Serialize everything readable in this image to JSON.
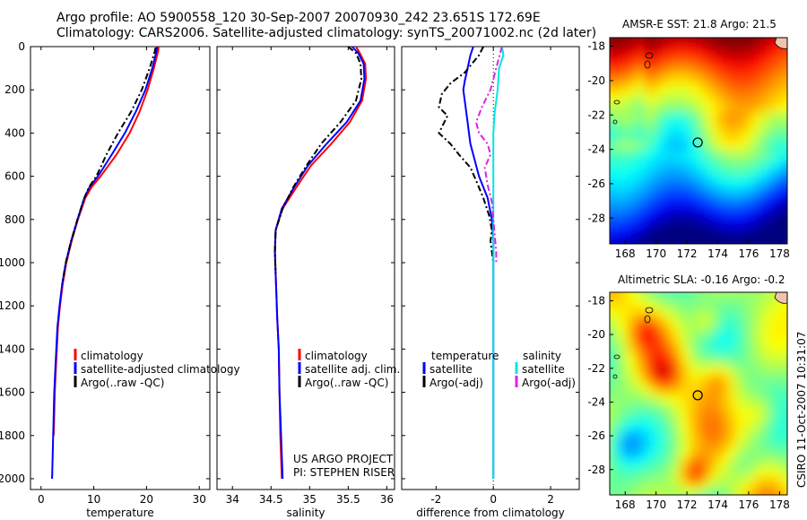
{
  "header": {
    "line1": "Argo profile: AO 5900558_120 30-Sep-2007 20070930_242 23.651S 172.69E",
    "line2": "Climatology: CARS2006. Satellite-adjusted climatology: synTS_20071002.nc (2d later)"
  },
  "colors": {
    "climatology": "#ff0000",
    "satellite": "#0000ff",
    "argo": "#000000",
    "sal_satellite": "#00e5e5",
    "sal_argo": "#e020e0"
  },
  "credits": {
    "project": "US ARGO PROJECT",
    "pi": "PI: STEPHEN RISER",
    "csiro": "CSIRO 11-Oct-2007 10:31:07"
  },
  "chart_data": [
    {
      "type": "line",
      "title": "",
      "xlabel": "temperature",
      "ylabel": "",
      "xlim": [
        -2,
        32
      ],
      "ylim": [
        2050,
        0
      ],
      "xticks": [
        "0",
        "10",
        "20",
        "30"
      ],
      "yticks": [
        "0",
        "200",
        "400",
        "600",
        "800",
        "1000",
        "1200",
        "1400",
        "1600",
        "1800",
        "2000"
      ],
      "legend": [
        "climatology",
        "satellite-adjusted climatology",
        "Argo(..raw -QC)"
      ],
      "series": [
        {
          "name": "climatology",
          "color": "red",
          "style": "solid",
          "points": [
            [
              22.3,
              0
            ],
            [
              22.2,
              20
            ],
            [
              21.4,
              100
            ],
            [
              20.2,
              200
            ],
            [
              18.7,
              300
            ],
            [
              16.8,
              400
            ],
            [
              14.3,
              500
            ],
            [
              11.3,
              600
            ],
            [
              9.6,
              650
            ],
            [
              8.4,
              700
            ],
            [
              7.0,
              800
            ],
            [
              5.8,
              900
            ],
            [
              4.8,
              1000
            ],
            [
              4.1,
              1100
            ],
            [
              3.6,
              1200
            ],
            [
              3.2,
              1300
            ],
            [
              3.0,
              1400
            ],
            [
              2.8,
              1500
            ],
            [
              2.6,
              1600
            ],
            [
              2.5,
              1700
            ],
            [
              2.4,
              1800
            ]
          ]
        },
        {
          "name": "satellite",
          "color": "blue",
          "style": "solid",
          "points": [
            [
              22.0,
              0
            ],
            [
              21.9,
              20
            ],
            [
              21.1,
              100
            ],
            [
              19.8,
              200
            ],
            [
              18.0,
              300
            ],
            [
              15.9,
              400
            ],
            [
              13.4,
              500
            ],
            [
              10.8,
              600
            ],
            [
              9.2,
              650
            ],
            [
              8.2,
              700
            ],
            [
              6.9,
              800
            ],
            [
              5.7,
              900
            ],
            [
              4.7,
              1000
            ],
            [
              4.0,
              1100
            ],
            [
              3.5,
              1200
            ],
            [
              3.1,
              1300
            ],
            [
              2.9,
              1400
            ],
            [
              2.7,
              1500
            ],
            [
              2.5,
              1600
            ],
            [
              2.4,
              1700
            ],
            [
              2.3,
              1800
            ],
            [
              2.2,
              1900
            ],
            [
              2.1,
              2000
            ]
          ]
        },
        {
          "name": "argo",
          "color": "black",
          "style": "dashed",
          "points": [
            [
              21.7,
              5
            ],
            [
              21.6,
              20
            ],
            [
              20.6,
              100
            ],
            [
              19.1,
              200
            ],
            [
              17.1,
              300
            ],
            [
              14.6,
              400
            ],
            [
              12.4,
              500
            ],
            [
              10.5,
              600
            ],
            [
              9.1,
              650
            ],
            [
              8.2,
              700
            ],
            [
              6.9,
              800
            ],
            [
              5.7,
              900
            ],
            [
              4.7,
              1000
            ],
            [
              4.0,
              1100
            ]
          ]
        }
      ]
    },
    {
      "type": "line",
      "xlabel": "salinity",
      "xlim": [
        33.8,
        36.1
      ],
      "ylim": [
        2050,
        0
      ],
      "xticks": [
        "34",
        "34.5",
        "35",
        "35.5",
        "36"
      ],
      "legend": [
        "climatology",
        "satellite adj. clim.",
        "Argo(..raw -QC)"
      ],
      "series": [
        {
          "name": "climatology",
          "color": "red",
          "style": "solid",
          "points": [
            [
              35.6,
              0
            ],
            [
              35.65,
              30
            ],
            [
              35.72,
              80
            ],
            [
              35.73,
              150
            ],
            [
              35.68,
              250
            ],
            [
              35.52,
              350
            ],
            [
              35.28,
              450
            ],
            [
              35.02,
              550
            ],
            [
              34.83,
              650
            ],
            [
              34.65,
              750
            ],
            [
              34.56,
              850
            ],
            [
              34.55,
              950
            ],
            [
              34.56,
              1050
            ],
            [
              34.57,
              1150
            ],
            [
              34.58,
              1250
            ],
            [
              34.6,
              1400
            ],
            [
              34.61,
              1600
            ],
            [
              34.62,
              1800
            ],
            [
              34.64,
              2000
            ]
          ]
        },
        {
          "name": "satellite",
          "color": "blue",
          "style": "solid",
          "points": [
            [
              35.55,
              0
            ],
            [
              35.63,
              30
            ],
            [
              35.7,
              80
            ],
            [
              35.71,
              150
            ],
            [
              35.66,
              250
            ],
            [
              35.48,
              350
            ],
            [
              35.22,
              450
            ],
            [
              34.98,
              550
            ],
            [
              34.8,
              650
            ],
            [
              34.64,
              750
            ],
            [
              34.56,
              850
            ],
            [
              34.55,
              950
            ],
            [
              34.56,
              1050
            ],
            [
              34.57,
              1150
            ],
            [
              34.58,
              1250
            ],
            [
              34.6,
              1400
            ],
            [
              34.61,
              1600
            ],
            [
              34.63,
              1800
            ],
            [
              34.65,
              2000
            ]
          ]
        },
        {
          "name": "argo",
          "color": "black",
          "style": "dashed",
          "points": [
            [
              35.5,
              0
            ],
            [
              35.6,
              30
            ],
            [
              35.66,
              80
            ],
            [
              35.67,
              150
            ],
            [
              35.6,
              250
            ],
            [
              35.4,
              350
            ],
            [
              35.15,
              450
            ],
            [
              34.96,
              550
            ],
            [
              34.79,
              650
            ],
            [
              34.65,
              750
            ],
            [
              34.56,
              850
            ],
            [
              34.55,
              950
            ],
            [
              34.56,
              1050
            ]
          ]
        }
      ]
    },
    {
      "type": "line",
      "xlabel": "difference from climatology",
      "xlim": [
        -3.2,
        3.0
      ],
      "ylim": [
        2050,
        0
      ],
      "xticks": [
        "-2",
        "0",
        "2"
      ],
      "zero_line": 0,
      "legend": [
        {
          "heading": "temperature",
          "entries": [
            "satellite",
            "Argo(-adj)"
          ]
        },
        {
          "heading": "salinity",
          "entries": [
            "satellite",
            "Argo(-adj)"
          ]
        }
      ],
      "series": [
        {
          "name": "temperature satellite",
          "color": "blue",
          "style": "solid",
          "points": [
            [
              -0.7,
              0
            ],
            [
              -0.8,
              40
            ],
            [
              -0.9,
              100
            ],
            [
              -1.0,
              160
            ],
            [
              -1.05,
              200
            ],
            [
              -1.0,
              250
            ],
            [
              -0.95,
              300
            ],
            [
              -0.9,
              350
            ],
            [
              -0.85,
              400
            ],
            [
              -0.8,
              450
            ],
            [
              -0.7,
              500
            ],
            [
              -0.5,
              600
            ],
            [
              -0.2,
              700
            ],
            [
              -0.05,
              800
            ],
            [
              0,
              900
            ],
            [
              0,
              1200
            ],
            [
              0,
              1600
            ],
            [
              0,
              2000
            ]
          ]
        },
        {
          "name": "temperature argo",
          "color": "black",
          "style": "dashed",
          "points": [
            [
              -0.35,
              0
            ],
            [
              -0.5,
              40
            ],
            [
              -1.0,
              120
            ],
            [
              -1.5,
              170
            ],
            [
              -1.8,
              220
            ],
            [
              -1.9,
              280
            ],
            [
              -1.6,
              320
            ],
            [
              -1.9,
              400
            ],
            [
              -1.5,
              450
            ],
            [
              -1.2,
              500
            ],
            [
              -0.8,
              560
            ],
            [
              -0.6,
              620
            ],
            [
              -0.35,
              700
            ],
            [
              -0.15,
              780
            ],
            [
              -0.05,
              850
            ],
            [
              -0.1,
              900
            ],
            [
              0,
              1000
            ]
          ]
        },
        {
          "name": "salinity satellite",
          "color": "cyan",
          "style": "solid",
          "points": [
            [
              0.3,
              0
            ],
            [
              0.35,
              40
            ],
            [
              0.2,
              100
            ],
            [
              0.15,
              200
            ],
            [
              0.05,
              300
            ],
            [
              0.0,
              400
            ],
            [
              0.0,
              500
            ],
            [
              0.0,
              700
            ],
            [
              0.0,
              1000
            ],
            [
              0.0,
              1400
            ],
            [
              0.0,
              2000
            ]
          ]
        },
        {
          "name": "salinity argo",
          "color": "magenta",
          "style": "dashed",
          "points": [
            [
              0.3,
              0
            ],
            [
              0.2,
              50
            ],
            [
              0.1,
              100
            ],
            [
              -0.1,
              200
            ],
            [
              -0.4,
              280
            ],
            [
              -0.6,
              350
            ],
            [
              -0.5,
              400
            ],
            [
              -0.2,
              450
            ],
            [
              -0.1,
              500
            ],
            [
              -0.3,
              560
            ],
            [
              -0.2,
              640
            ],
            [
              -0.05,
              720
            ],
            [
              0.0,
              800
            ],
            [
              0.1,
              950
            ],
            [
              0.1,
              1000
            ]
          ]
        }
      ]
    },
    {
      "type": "heatmap",
      "title": "AMSR-E SST: 21.8 Argo: 21.5",
      "xlim": [
        167,
        178.5
      ],
      "ylim": [
        -29.5,
        -17.5
      ],
      "xticks": [
        "168",
        "170",
        "172",
        "174",
        "176",
        "178"
      ],
      "yticks": [
        "-18",
        "-20",
        "-22",
        "-24",
        "-26",
        "-28"
      ],
      "marker": [
        172.7,
        -23.6
      ],
      "colormap": "jet",
      "pattern": "warm north, cool south"
    },
    {
      "type": "heatmap",
      "title": "Altimetric SLA: -0.16 Argo: -0.2",
      "xlim": [
        167,
        178.5
      ],
      "ylim": [
        -29.5,
        -17.5
      ],
      "xticks": [
        "168",
        "170",
        "172",
        "174",
        "176",
        "178"
      ],
      "yticks": [
        "-18",
        "-20",
        "-22",
        "-24",
        "-26",
        "-28"
      ],
      "marker": [
        172.7,
        -23.6
      ],
      "colormap": "jet",
      "pattern": "mesoscale eddies"
    }
  ]
}
